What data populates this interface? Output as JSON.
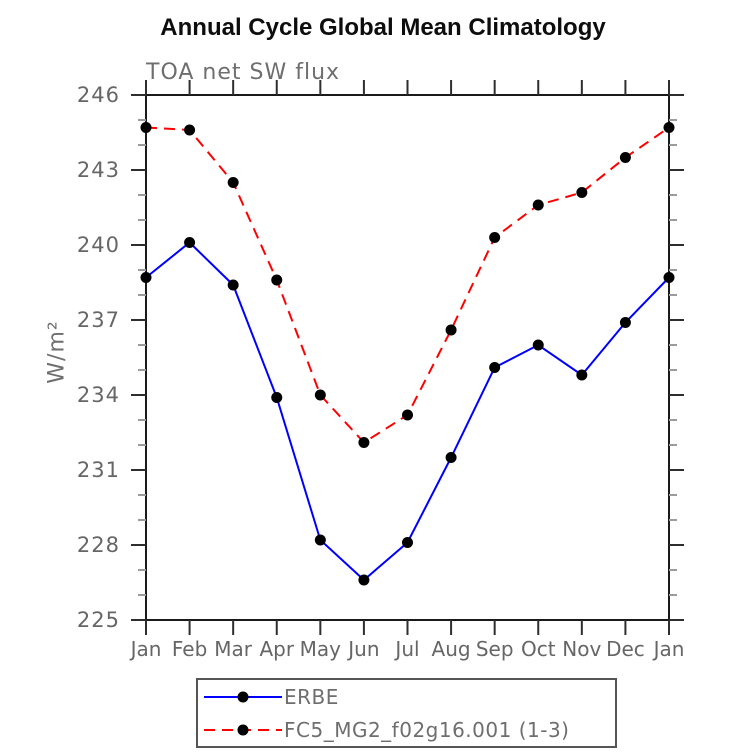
{
  "chart_data": {
    "type": "line",
    "title": "Annual Cycle Global Mean Climatology",
    "subtitle": "TOA net SW flux",
    "ylabel": "W/m²",
    "x": [
      "Jan",
      "Feb",
      "Mar",
      "Apr",
      "May",
      "Jun",
      "Jul",
      "Aug",
      "Sep",
      "Oct",
      "Nov",
      "Dec",
      "Jan"
    ],
    "ylim": [
      225,
      246
    ],
    "y_major_ticks": [
      225,
      228,
      231,
      234,
      237,
      240,
      243,
      246
    ],
    "y_minor_step": 1,
    "grid": false,
    "legend_position": "bottom",
    "marker": "filled-circle",
    "marker_color": "#000000",
    "series": [
      {
        "name": "ERBE",
        "color": "#0000ff",
        "line_style": "solid",
        "values": [
          238.7,
          240.1,
          238.4,
          233.9,
          228.2,
          226.6,
          228.1,
          231.5,
          235.1,
          236.0,
          234.8,
          236.9,
          238.7
        ]
      },
      {
        "name": "FC5_MG2_f02g16.001 (1-3)",
        "color": "#ff0000",
        "line_style": "dashed",
        "values": [
          244.7,
          244.6,
          242.5,
          238.6,
          234.0,
          232.1,
          233.2,
          236.6,
          240.3,
          241.6,
          242.1,
          243.5,
          244.7
        ]
      }
    ]
  }
}
